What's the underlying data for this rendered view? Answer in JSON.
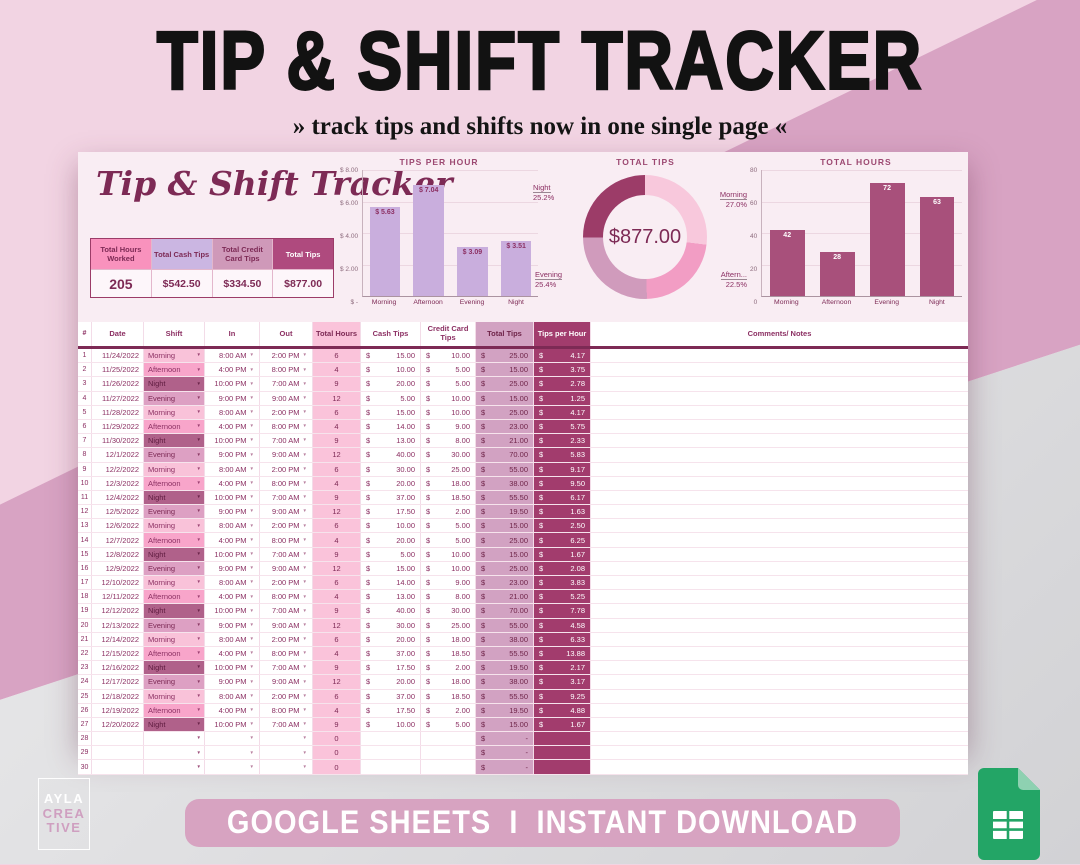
{
  "page": {
    "title_main": "TIP & SHIFT TRACKER",
    "subtitle": "» track tips and shifts now in one single page «",
    "footer_banner": "GOOGLE SHEETS  I  INSTANT DOWNLOAD",
    "brand": {
      "line1": "AYLA",
      "line2": "CREA",
      "line3": "TIVE"
    },
    "colors": {
      "accent_pink": "#d8a3c3",
      "page_pink": "#f2d4e3",
      "maroon": "#7d2a55",
      "sheets_green": "#23a566"
    }
  },
  "sheet": {
    "title": "Tip & Shift Tracker",
    "summary": {
      "cards": [
        {
          "label": "Total Hours Worked",
          "value": "205",
          "header_bg": "#f992bd",
          "header_fg": "#7d2a55"
        },
        {
          "label": "Total Cash Tips",
          "value": "$542.50",
          "header_bg": "#cbb6e2",
          "header_fg": "#7d2a55"
        },
        {
          "label": "Total Credit Card Tips",
          "value": "$334.50",
          "header_bg": "#cf99b9",
          "header_fg": "#7d2a55"
        },
        {
          "label": "Total Tips",
          "value": "$877.00",
          "header_bg": "#af4a7e",
          "header_fg": "#ffffff"
        }
      ]
    }
  },
  "chart_data": [
    {
      "type": "bar",
      "title": "TIPS PER HOUR",
      "categories": [
        "Morning",
        "Afternoon",
        "Evening",
        "Night"
      ],
      "values": [
        5.63,
        7.04,
        3.09,
        3.51
      ],
      "bar_labels": [
        "$ 5.63",
        "$ 7.04",
        "$ 3.09",
        "$ 3.51"
      ],
      "ylim": [
        0,
        8
      ],
      "yticks": [
        "$ 8.00",
        "$ 6.00",
        "$ 4.00",
        "$ 2.00",
        "$ -"
      ],
      "bar_color": "#c9aedd",
      "label_color": "#8c3063",
      "grid": true,
      "legend": "none"
    },
    {
      "type": "pie",
      "subtype": "donut",
      "title": "TOTAL TIPS",
      "center_label": "$877.00",
      "slices": [
        {
          "name": "Morning",
          "pct": 27.0,
          "pct_label": "27.0%",
          "color": "#f8c8dc"
        },
        {
          "name": "Aftern...",
          "pct": 22.5,
          "pct_label": "22.5%",
          "color": "#f29dc4"
        },
        {
          "name": "Evening",
          "pct": 25.4,
          "pct_label": "25.4%",
          "color": "#d09bbc"
        },
        {
          "name": "Night",
          "pct": 25.2,
          "pct_label": "25.2%",
          "color": "#9c3c68"
        }
      ],
      "legend": "outside-callouts"
    },
    {
      "type": "bar",
      "title": "TOTAL HOURS",
      "categories": [
        "Morning",
        "Afternoon",
        "Evening",
        "Night"
      ],
      "values": [
        42,
        28,
        72,
        63
      ],
      "bar_labels": [
        "42",
        "28",
        "72",
        "63"
      ],
      "ylim": [
        0,
        80
      ],
      "yticks": [
        "80",
        "60",
        "40",
        "20",
        "0"
      ],
      "bar_color": "#a8507b",
      "label_color": "#ffffff",
      "grid": true,
      "legend": "none"
    }
  ],
  "table": {
    "headers": [
      "#",
      "Date",
      "Shift",
      "In",
      "Out",
      "Total Hours",
      "Cash Tips",
      "Credit Card Tips",
      "Total Tips",
      "Tips per Hour",
      "Comments/ Notes"
    ],
    "shift_styles": {
      "Morning": {
        "bg": "#f9c2d9",
        "fg": "#8c3063"
      },
      "Afternoon": {
        "bg": "#f8a5ca",
        "fg": "#8c3063"
      },
      "Night": {
        "bg": "#b0618a",
        "fg": "#5e1b3f"
      },
      "Evening": {
        "bg": "#dda0c3",
        "fg": "#7d2a55"
      }
    },
    "rows": [
      {
        "n": "1",
        "date": "11/24/2022",
        "shift": "Morning",
        "in": "8:00 AM",
        "out": "2:00 PM",
        "h": "6",
        "cash": "15.00",
        "credit": "10.00",
        "total": "25.00",
        "tph": "4.17",
        "comments": ""
      },
      {
        "n": "2",
        "date": "11/25/2022",
        "shift": "Afternoon",
        "in": "4:00 PM",
        "out": "8:00 PM",
        "h": "4",
        "cash": "10.00",
        "credit": "5.00",
        "total": "15.00",
        "tph": "3.75",
        "comments": ""
      },
      {
        "n": "3",
        "date": "11/26/2022",
        "shift": "Night",
        "in": "10:00 PM",
        "out": "7:00 AM",
        "h": "9",
        "cash": "20.00",
        "credit": "5.00",
        "total": "25.00",
        "tph": "2.78",
        "comments": ""
      },
      {
        "n": "4",
        "date": "11/27/2022",
        "shift": "Evening",
        "in": "9:00 PM",
        "out": "9:00 AM",
        "h": "12",
        "cash": "5.00",
        "credit": "10.00",
        "total": "15.00",
        "tph": "1.25",
        "comments": ""
      },
      {
        "n": "5",
        "date": "11/28/2022",
        "shift": "Morning",
        "in": "8:00 AM",
        "out": "2:00 PM",
        "h": "6",
        "cash": "15.00",
        "credit": "10.00",
        "total": "25.00",
        "tph": "4.17",
        "comments": ""
      },
      {
        "n": "6",
        "date": "11/29/2022",
        "shift": "Afternoon",
        "in": "4:00 PM",
        "out": "8:00 PM",
        "h": "4",
        "cash": "14.00",
        "credit": "9.00",
        "total": "23.00",
        "tph": "5.75",
        "comments": ""
      },
      {
        "n": "7",
        "date": "11/30/2022",
        "shift": "Night",
        "in": "10:00 PM",
        "out": "7:00 AM",
        "h": "9",
        "cash": "13.00",
        "credit": "8.00",
        "total": "21.00",
        "tph": "2.33",
        "comments": ""
      },
      {
        "n": "8",
        "date": "12/1/2022",
        "shift": "Evening",
        "in": "9:00 PM",
        "out": "9:00 AM",
        "h": "12",
        "cash": "40.00",
        "credit": "30.00",
        "total": "70.00",
        "tph": "5.83",
        "comments": ""
      },
      {
        "n": "9",
        "date": "12/2/2022",
        "shift": "Morning",
        "in": "8:00 AM",
        "out": "2:00 PM",
        "h": "6",
        "cash": "30.00",
        "credit": "25.00",
        "total": "55.00",
        "tph": "9.17",
        "comments": ""
      },
      {
        "n": "10",
        "date": "12/3/2022",
        "shift": "Afternoon",
        "in": "4:00 PM",
        "out": "8:00 PM",
        "h": "4",
        "cash": "20.00",
        "credit": "18.00",
        "total": "38.00",
        "tph": "9.50",
        "comments": ""
      },
      {
        "n": "11",
        "date": "12/4/2022",
        "shift": "Night",
        "in": "10:00 PM",
        "out": "7:00 AM",
        "h": "9",
        "cash": "37.00",
        "credit": "18.50",
        "total": "55.50",
        "tph": "6.17",
        "comments": ""
      },
      {
        "n": "12",
        "date": "12/5/2022",
        "shift": "Evening",
        "in": "9:00 PM",
        "out": "9:00 AM",
        "h": "12",
        "cash": "17.50",
        "credit": "2.00",
        "total": "19.50",
        "tph": "1.63",
        "comments": ""
      },
      {
        "n": "13",
        "date": "12/6/2022",
        "shift": "Morning",
        "in": "8:00 AM",
        "out": "2:00 PM",
        "h": "6",
        "cash": "10.00",
        "credit": "5.00",
        "total": "15.00",
        "tph": "2.50",
        "comments": ""
      },
      {
        "n": "14",
        "date": "12/7/2022",
        "shift": "Afternoon",
        "in": "4:00 PM",
        "out": "8:00 PM",
        "h": "4",
        "cash": "20.00",
        "credit": "5.00",
        "total": "25.00",
        "tph": "6.25",
        "comments": ""
      },
      {
        "n": "15",
        "date": "12/8/2022",
        "shift": "Night",
        "in": "10:00 PM",
        "out": "7:00 AM",
        "h": "9",
        "cash": "5.00",
        "credit": "10.00",
        "total": "15.00",
        "tph": "1.67",
        "comments": ""
      },
      {
        "n": "16",
        "date": "12/9/2022",
        "shift": "Evening",
        "in": "9:00 PM",
        "out": "9:00 AM",
        "h": "12",
        "cash": "15.00",
        "credit": "10.00",
        "total": "25.00",
        "tph": "2.08",
        "comments": ""
      },
      {
        "n": "17",
        "date": "12/10/2022",
        "shift": "Morning",
        "in": "8:00 AM",
        "out": "2:00 PM",
        "h": "6",
        "cash": "14.00",
        "credit": "9.00",
        "total": "23.00",
        "tph": "3.83",
        "comments": ""
      },
      {
        "n": "18",
        "date": "12/11/2022",
        "shift": "Afternoon",
        "in": "4:00 PM",
        "out": "8:00 PM",
        "h": "4",
        "cash": "13.00",
        "credit": "8.00",
        "total": "21.00",
        "tph": "5.25",
        "comments": ""
      },
      {
        "n": "19",
        "date": "12/12/2022",
        "shift": "Night",
        "in": "10:00 PM",
        "out": "7:00 AM",
        "h": "9",
        "cash": "40.00",
        "credit": "30.00",
        "total": "70.00",
        "tph": "7.78",
        "comments": ""
      },
      {
        "n": "20",
        "date": "12/13/2022",
        "shift": "Evening",
        "in": "9:00 PM",
        "out": "9:00 AM",
        "h": "12",
        "cash": "30.00",
        "credit": "25.00",
        "total": "55.00",
        "tph": "4.58",
        "comments": ""
      },
      {
        "n": "21",
        "date": "12/14/2022",
        "shift": "Morning",
        "in": "8:00 AM",
        "out": "2:00 PM",
        "h": "6",
        "cash": "20.00",
        "credit": "18.00",
        "total": "38.00",
        "tph": "6.33",
        "comments": ""
      },
      {
        "n": "22",
        "date": "12/15/2022",
        "shift": "Afternoon",
        "in": "4:00 PM",
        "out": "8:00 PM",
        "h": "4",
        "cash": "37.00",
        "credit": "18.50",
        "total": "55.50",
        "tph": "13.88",
        "comments": ""
      },
      {
        "n": "23",
        "date": "12/16/2022",
        "shift": "Night",
        "in": "10:00 PM",
        "out": "7:00 AM",
        "h": "9",
        "cash": "17.50",
        "credit": "2.00",
        "total": "19.50",
        "tph": "2.17",
        "comments": ""
      },
      {
        "n": "24",
        "date": "12/17/2022",
        "shift": "Evening",
        "in": "9:00 PM",
        "out": "9:00 AM",
        "h": "12",
        "cash": "20.00",
        "credit": "18.00",
        "total": "38.00",
        "tph": "3.17",
        "comments": ""
      },
      {
        "n": "25",
        "date": "12/18/2022",
        "shift": "Morning",
        "in": "8:00 AM",
        "out": "2:00 PM",
        "h": "6",
        "cash": "37.00",
        "credit": "18.50",
        "total": "55.50",
        "tph": "9.25",
        "comments": ""
      },
      {
        "n": "26",
        "date": "12/19/2022",
        "shift": "Afternoon",
        "in": "4:00 PM",
        "out": "8:00 PM",
        "h": "4",
        "cash": "17.50",
        "credit": "2.00",
        "total": "19.50",
        "tph": "4.88",
        "comments": ""
      },
      {
        "n": "27",
        "date": "12/20/2022",
        "shift": "Night",
        "in": "10:00 PM",
        "out": "7:00 AM",
        "h": "9",
        "cash": "10.00",
        "credit": "5.00",
        "total": "15.00",
        "tph": "1.67",
        "comments": ""
      },
      {
        "n": "28",
        "date": "",
        "shift": "",
        "in": "",
        "out": "",
        "h": "0",
        "cash": "",
        "credit": "",
        "total": "-",
        "tph": "",
        "comments": ""
      },
      {
        "n": "29",
        "date": "",
        "shift": "",
        "in": "",
        "out": "",
        "h": "0",
        "cash": "",
        "credit": "",
        "total": "-",
        "tph": "",
        "comments": ""
      },
      {
        "n": "30",
        "date": "",
        "shift": "",
        "in": "",
        "out": "",
        "h": "0",
        "cash": "",
        "credit": "",
        "total": "-",
        "tph": "",
        "comments": ""
      }
    ]
  }
}
